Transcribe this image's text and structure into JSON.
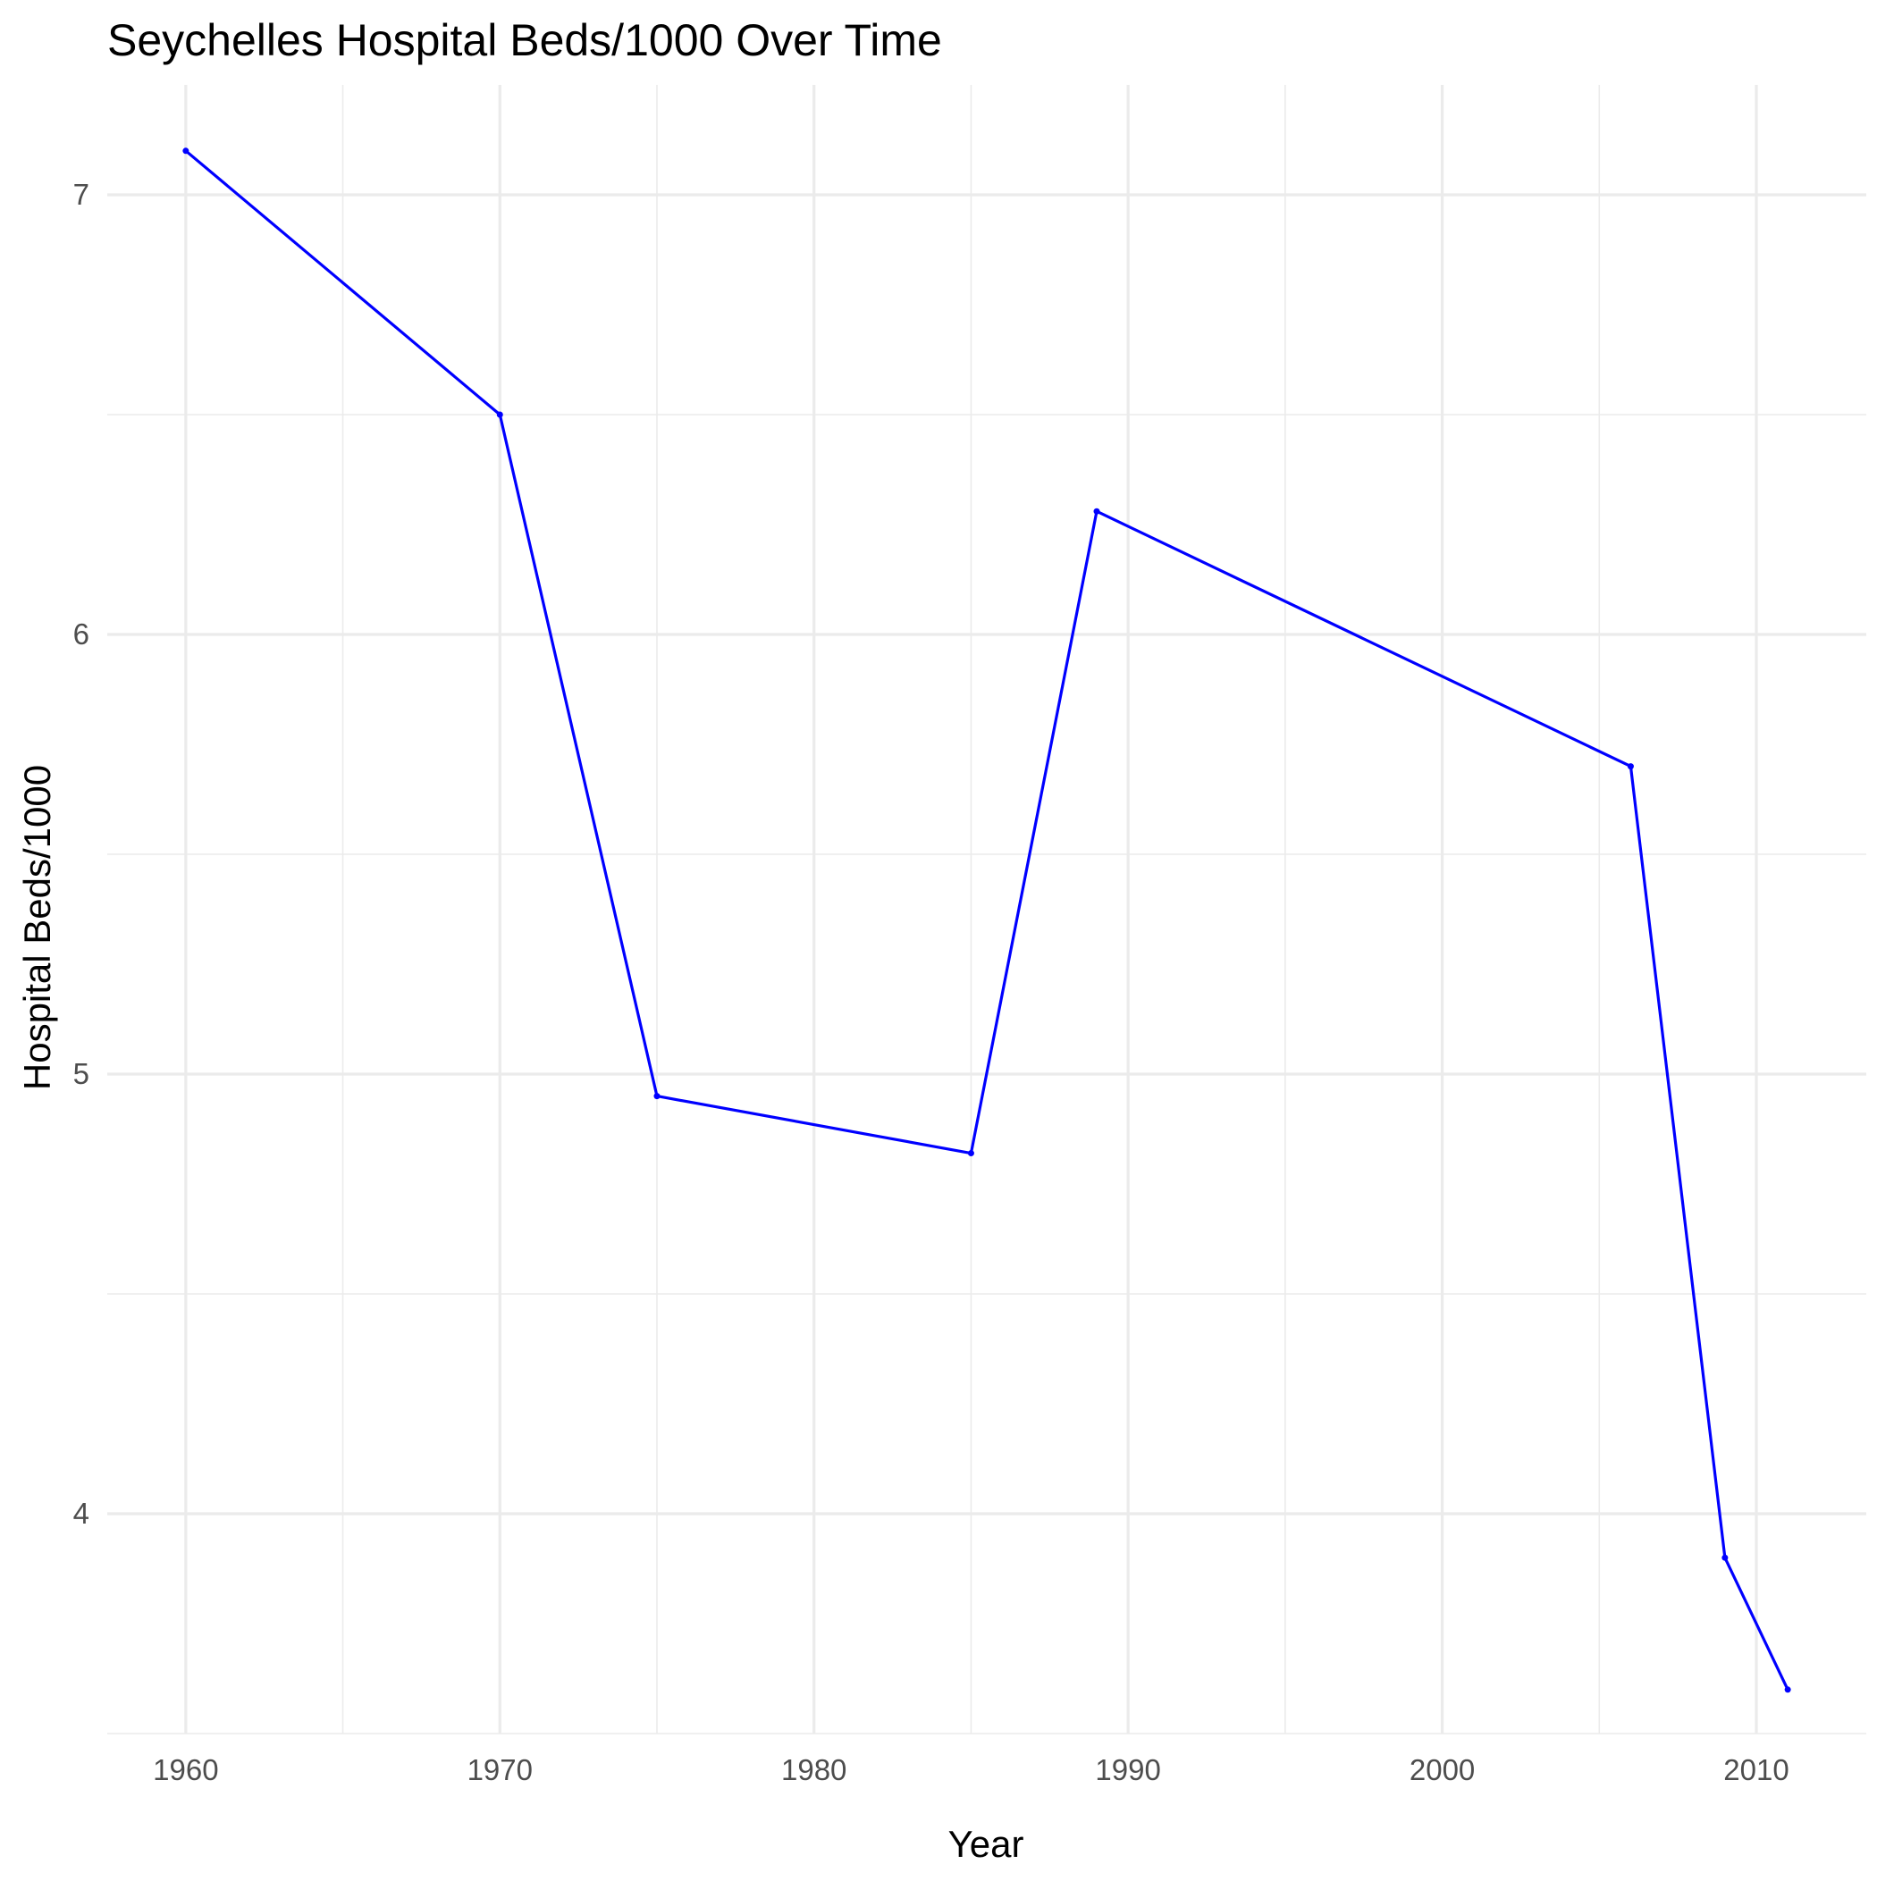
{
  "chart_data": {
    "type": "line",
    "title": "Seychelles Hospital Beds/1000 Over Time",
    "xlabel": "Year",
    "ylabel": "Hospital Beds/1000",
    "x": [
      1960,
      1970,
      1975,
      1985,
      1989,
      2006,
      2009,
      2011
    ],
    "series": [
      {
        "values": [
          7.1,
          6.5,
          4.95,
          4.82,
          6.28,
          5.7,
          3.9,
          3.6
        ]
      }
    ],
    "x_ticks": [
      "1960",
      "1970",
      "1980",
      "1990",
      "2000",
      "2010"
    ],
    "y_ticks": [
      "4",
      "5",
      "6",
      "7"
    ],
    "xlim": [
      1957.5,
      2013.5
    ],
    "ylim": [
      3.5,
      7.25
    ],
    "grid": true,
    "legend": "none",
    "line_color": "#0000ff"
  }
}
